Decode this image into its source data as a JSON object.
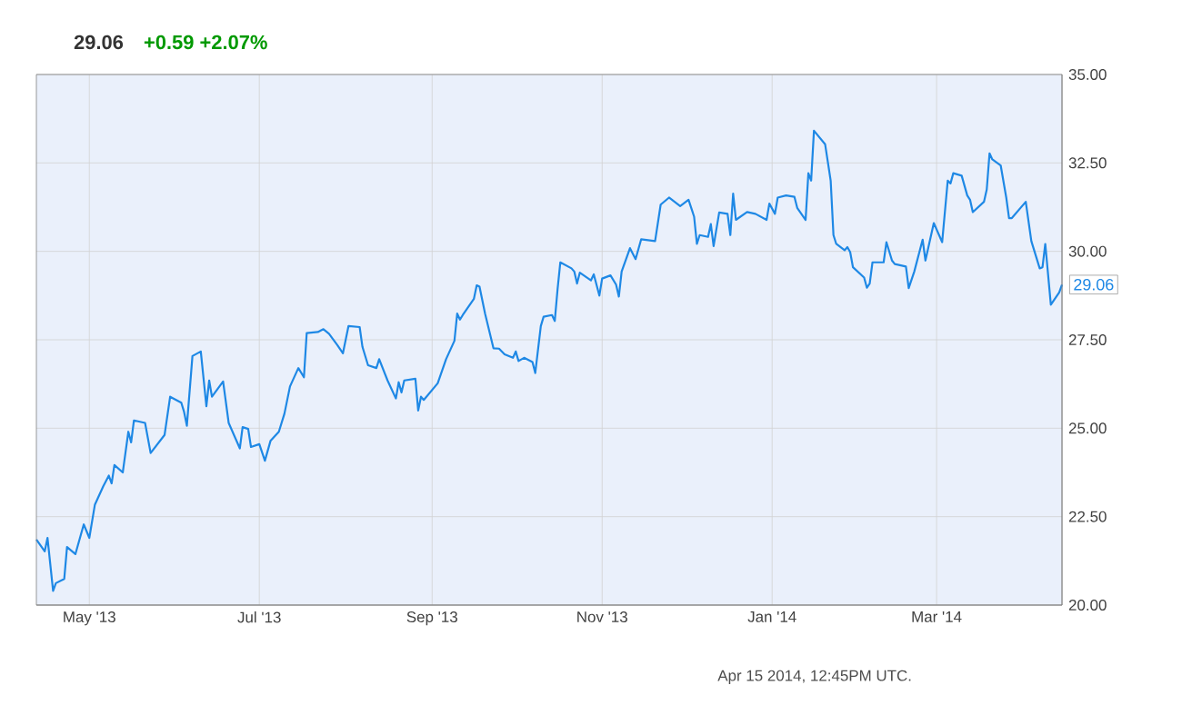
{
  "chart_data": {
    "type": "line",
    "title": "29.06",
    "subtitle": "+0.59  +2.07%",
    "annotations": [
      {
        "text": "29.06",
        "x": "2014-04-15",
        "y": 29.06
      },
      "Apr 15 2014, 12:45PM UTC."
    ],
    "xlim": [
      "2013-04-12",
      "2014-04-15"
    ],
    "xticks": [
      {
        "value": "2013-05-01",
        "label": "May '13"
      },
      {
        "value": "2013-07-01",
        "label": "Jul '13"
      },
      {
        "value": "2013-09-01",
        "label": "Sep '13"
      },
      {
        "value": "2013-11-01",
        "label": "Nov '13"
      },
      {
        "value": "2014-01-01",
        "label": "Jan '14"
      },
      {
        "value": "2014-03-01",
        "label": "Mar '14"
      }
    ],
    "ylim": [
      20,
      35
    ],
    "yticks": [
      {
        "value": 20,
        "label": "20.00"
      },
      {
        "value": 22.5,
        "label": "22.50"
      },
      {
        "value": 25,
        "label": "25.00"
      },
      {
        "value": 27.5,
        "label": "27.50"
      },
      {
        "value": 30,
        "label": "30.00"
      },
      {
        "value": 32.5,
        "label": "32.50"
      },
      {
        "value": 35,
        "label": "35.00"
      }
    ],
    "grid": true,
    "x": [
      "2013-04-12",
      "2013-04-15",
      "2013-04-16",
      "2013-04-18",
      "2013-04-19",
      "2013-04-22",
      "2013-04-23",
      "2013-04-26",
      "2013-04-29",
      "2013-05-01",
      "2013-05-03",
      "2013-05-06",
      "2013-05-08",
      "2013-05-09",
      "2013-05-10",
      "2013-05-13",
      "2013-05-15",
      "2013-05-16",
      "2013-05-17",
      "2013-05-21",
      "2013-05-23",
      "2013-05-28",
      "2013-05-30",
      "2013-06-03",
      "2013-06-04",
      "2013-06-05",
      "2013-06-07",
      "2013-06-10",
      "2013-06-12",
      "2013-06-13",
      "2013-06-14",
      "2013-06-18",
      "2013-06-20",
      "2013-06-24",
      "2013-06-25",
      "2013-06-27",
      "2013-06-28",
      "2013-07-01",
      "2013-07-03",
      "2013-07-05",
      "2013-07-08",
      "2013-07-10",
      "2013-07-12",
      "2013-07-15",
      "2013-07-17",
      "2013-07-18",
      "2013-07-22",
      "2013-07-24",
      "2013-07-26",
      "2013-07-29",
      "2013-07-31",
      "2013-08-02",
      "2013-08-06",
      "2013-08-07",
      "2013-08-09",
      "2013-08-12",
      "2013-08-13",
      "2013-08-16",
      "2013-08-19",
      "2013-08-20",
      "2013-08-21",
      "2013-08-22",
      "2013-08-26",
      "2013-08-27",
      "2013-08-28",
      "2013-08-29",
      "2013-09-03",
      "2013-09-06",
      "2013-09-09",
      "2013-09-10",
      "2013-09-11",
      "2013-09-12",
      "2013-09-16",
      "2013-09-17",
      "2013-09-18",
      "2013-09-20",
      "2013-09-23",
      "2013-09-25",
      "2013-09-27",
      "2013-09-30",
      "2013-10-01",
      "2013-10-02",
      "2013-10-04",
      "2013-10-07",
      "2013-10-08",
      "2013-10-10",
      "2013-10-11",
      "2013-10-14",
      "2013-10-15",
      "2013-10-16",
      "2013-10-17",
      "2013-10-21",
      "2013-10-22",
      "2013-10-23",
      "2013-10-24",
      "2013-10-28",
      "2013-10-29",
      "2013-10-31",
      "2013-11-01",
      "2013-11-04",
      "2013-11-06",
      "2013-11-07",
      "2013-11-08",
      "2013-11-11",
      "2013-11-13",
      "2013-11-15",
      "2013-11-20",
      "2013-11-22",
      "2013-11-25",
      "2013-11-27",
      "2013-11-29",
      "2013-12-02",
      "2013-12-04",
      "2013-12-05",
      "2013-12-06",
      "2013-12-09",
      "2013-12-10",
      "2013-12-11",
      "2013-12-13",
      "2013-12-16",
      "2013-12-17",
      "2013-12-18",
      "2013-12-19",
      "2013-12-23",
      "2013-12-26",
      "2013-12-30",
      "2013-12-31",
      "2014-01-02",
      "2014-01-03",
      "2014-01-06",
      "2014-01-09",
      "2014-01-10",
      "2014-01-13",
      "2014-01-14",
      "2014-01-15",
      "2014-01-16",
      "2014-01-20",
      "2014-01-21",
      "2014-01-22",
      "2014-01-23",
      "2014-01-24",
      "2014-01-27",
      "2014-01-28",
      "2014-01-29",
      "2014-01-30",
      "2014-02-03",
      "2014-02-04",
      "2014-02-05",
      "2014-02-06",
      "2014-02-10",
      "2014-02-11",
      "2014-02-13",
      "2014-02-14",
      "2014-02-18",
      "2014-02-19",
      "2014-02-21",
      "2014-02-24",
      "2014-02-25",
      "2014-02-28",
      "2014-03-03",
      "2014-03-05",
      "2014-03-06",
      "2014-03-07",
      "2014-03-10",
      "2014-03-12",
      "2014-03-13",
      "2014-03-14",
      "2014-03-18",
      "2014-03-19",
      "2014-03-20",
      "2014-03-21",
      "2014-03-24",
      "2014-03-26",
      "2014-03-27",
      "2014-03-28",
      "2014-04-02",
      "2014-04-04",
      "2014-04-07",
      "2014-04-08",
      "2014-04-09",
      "2014-04-11",
      "2014-04-14",
      "2014-04-15"
    ],
    "series": [
      {
        "color": "#1e88e5",
        "values": [
          21.85,
          21.52,
          21.9,
          20.4,
          20.62,
          20.74,
          21.64,
          21.44,
          22.28,
          21.9,
          22.84,
          23.36,
          23.66,
          23.44,
          23.96,
          23.75,
          24.9,
          24.6,
          25.22,
          25.15,
          24.3,
          24.81,
          25.89,
          25.72,
          25.46,
          25.07,
          27.04,
          27.17,
          25.62,
          26.35,
          25.89,
          26.32,
          25.15,
          24.43,
          25.03,
          24.98,
          24.47,
          24.55,
          24.08,
          24.64,
          24.9,
          25.41,
          26.18,
          26.7,
          26.44,
          27.69,
          27.72,
          27.8,
          27.67,
          27.35,
          27.12,
          27.89,
          27.86,
          27.3,
          26.78,
          26.7,
          26.95,
          26.35,
          25.84,
          26.3,
          26.01,
          26.35,
          26.4,
          25.5,
          25.89,
          25.8,
          26.27,
          26.95,
          27.47,
          28.24,
          28.07,
          28.2,
          28.66,
          29.04,
          29.0,
          28.24,
          27.26,
          27.25,
          27.09,
          26.99,
          27.17,
          26.9,
          26.99,
          26.87,
          26.56,
          27.89,
          28.15,
          28.2,
          28.03,
          28.92,
          29.69,
          29.52,
          29.43,
          29.09,
          29.4,
          29.18,
          29.35,
          28.75,
          29.23,
          29.32,
          29.06,
          28.72,
          29.43,
          30.09,
          29.78,
          30.34,
          30.29,
          31.32,
          31.52,
          31.4,
          31.28,
          31.46,
          30.98,
          30.21,
          30.46,
          30.41,
          30.77,
          30.15,
          31.1,
          31.06,
          30.46,
          31.63,
          30.89,
          31.11,
          31.06,
          30.89,
          31.35,
          31.06,
          31.52,
          31.58,
          31.54,
          31.23,
          30.89,
          32.21,
          32.0,
          33.41,
          33.03,
          32.52,
          32.0,
          30.46,
          30.21,
          30.03,
          30.12,
          29.98,
          29.55,
          29.26,
          28.97,
          29.09,
          29.69,
          29.69,
          30.26,
          29.74,
          29.64,
          29.57,
          28.96,
          29.43,
          30.33,
          29.74,
          30.8,
          30.26,
          32.0,
          31.92,
          32.21,
          32.14,
          31.58,
          31.46,
          31.11,
          31.4,
          31.75,
          32.77,
          32.6,
          32.43,
          31.52,
          30.94,
          30.94,
          31.4,
          30.29,
          29.52,
          29.55,
          30.21,
          28.49,
          28.84,
          29.06
        ]
      }
    ]
  }
}
